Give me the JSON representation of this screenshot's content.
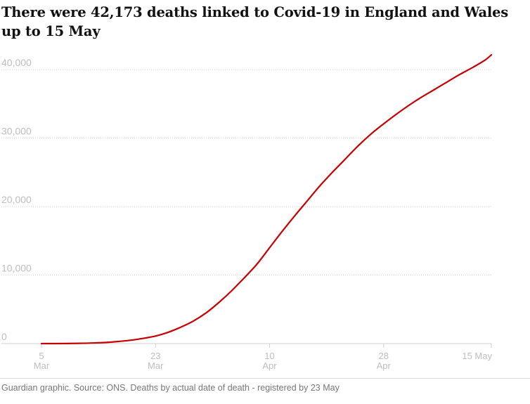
{
  "chart_data": {
    "type": "line",
    "title": "There were 42,173 deaths linked to Covid-19 in England and Wales up to 15 May",
    "xlabel": "",
    "ylabel": "",
    "x_domain": [
      "2020-03-05",
      "2020-05-15"
    ],
    "ylim": [
      0,
      43000
    ],
    "y_ticks": [
      {
        "value": 0,
        "label": "0"
      },
      {
        "value": 10000,
        "label": "10,000"
      },
      {
        "value": 20000,
        "label": "20,000"
      },
      {
        "value": 30000,
        "label": "30,000"
      },
      {
        "value": 40000,
        "label": "40,000"
      }
    ],
    "x_ticks": [
      {
        "date": "2020-03-05",
        "line1": "5",
        "line2": "Mar"
      },
      {
        "date": "2020-03-23",
        "line1": "23",
        "line2": "Mar"
      },
      {
        "date": "2020-04-10",
        "line1": "10",
        "line2": "Apr"
      },
      {
        "date": "2020-04-28",
        "line1": "28",
        "line2": "Apr"
      },
      {
        "date": "2020-05-15",
        "line1": "15 May",
        "line2": ""
      }
    ],
    "grid": true,
    "legend": "none",
    "series": [
      {
        "color": "#c70000",
        "points": [
          {
            "x": "2020-03-05",
            "y": 0
          },
          {
            "x": "2020-03-07",
            "y": 5
          },
          {
            "x": "2020-03-09",
            "y": 15
          },
          {
            "x": "2020-03-11",
            "y": 40
          },
          {
            "x": "2020-03-13",
            "y": 80
          },
          {
            "x": "2020-03-15",
            "y": 150
          },
          {
            "x": "2020-03-17",
            "y": 300
          },
          {
            "x": "2020-03-19",
            "y": 480
          },
          {
            "x": "2020-03-21",
            "y": 750
          },
          {
            "x": "2020-03-23",
            "y": 1100
          },
          {
            "x": "2020-03-25",
            "y": 1650
          },
          {
            "x": "2020-03-27",
            "y": 2400
          },
          {
            "x": "2020-03-29",
            "y": 3300
          },
          {
            "x": "2020-03-31",
            "y": 4500
          },
          {
            "x": "2020-04-02",
            "y": 6000
          },
          {
            "x": "2020-04-04",
            "y": 7700
          },
          {
            "x": "2020-04-06",
            "y": 9600
          },
          {
            "x": "2020-04-08",
            "y": 11600
          },
          {
            "x": "2020-04-10",
            "y": 14000
          },
          {
            "x": "2020-04-12",
            "y": 16400
          },
          {
            "x": "2020-04-14",
            "y": 18700
          },
          {
            "x": "2020-04-16",
            "y": 20900
          },
          {
            "x": "2020-04-18",
            "y": 23100
          },
          {
            "x": "2020-04-20",
            "y": 25100
          },
          {
            "x": "2020-04-22",
            "y": 27000
          },
          {
            "x": "2020-04-24",
            "y": 28900
          },
          {
            "x": "2020-04-26",
            "y": 30600
          },
          {
            "x": "2020-04-28",
            "y": 32100
          },
          {
            "x": "2020-04-30",
            "y": 33500
          },
          {
            "x": "2020-05-02",
            "y": 34800
          },
          {
            "x": "2020-05-04",
            "y": 36000
          },
          {
            "x": "2020-05-06",
            "y": 37100
          },
          {
            "x": "2020-05-08",
            "y": 38200
          },
          {
            "x": "2020-05-10",
            "y": 39300
          },
          {
            "x": "2020-05-12",
            "y": 40300
          },
          {
            "x": "2020-05-14",
            "y": 41400
          },
          {
            "x": "2020-05-15",
            "y": 42173
          }
        ]
      }
    ]
  },
  "footer": {
    "source": "Guardian graphic. Source: ONS. Deaths by actual date of death - registered by 23 May"
  }
}
